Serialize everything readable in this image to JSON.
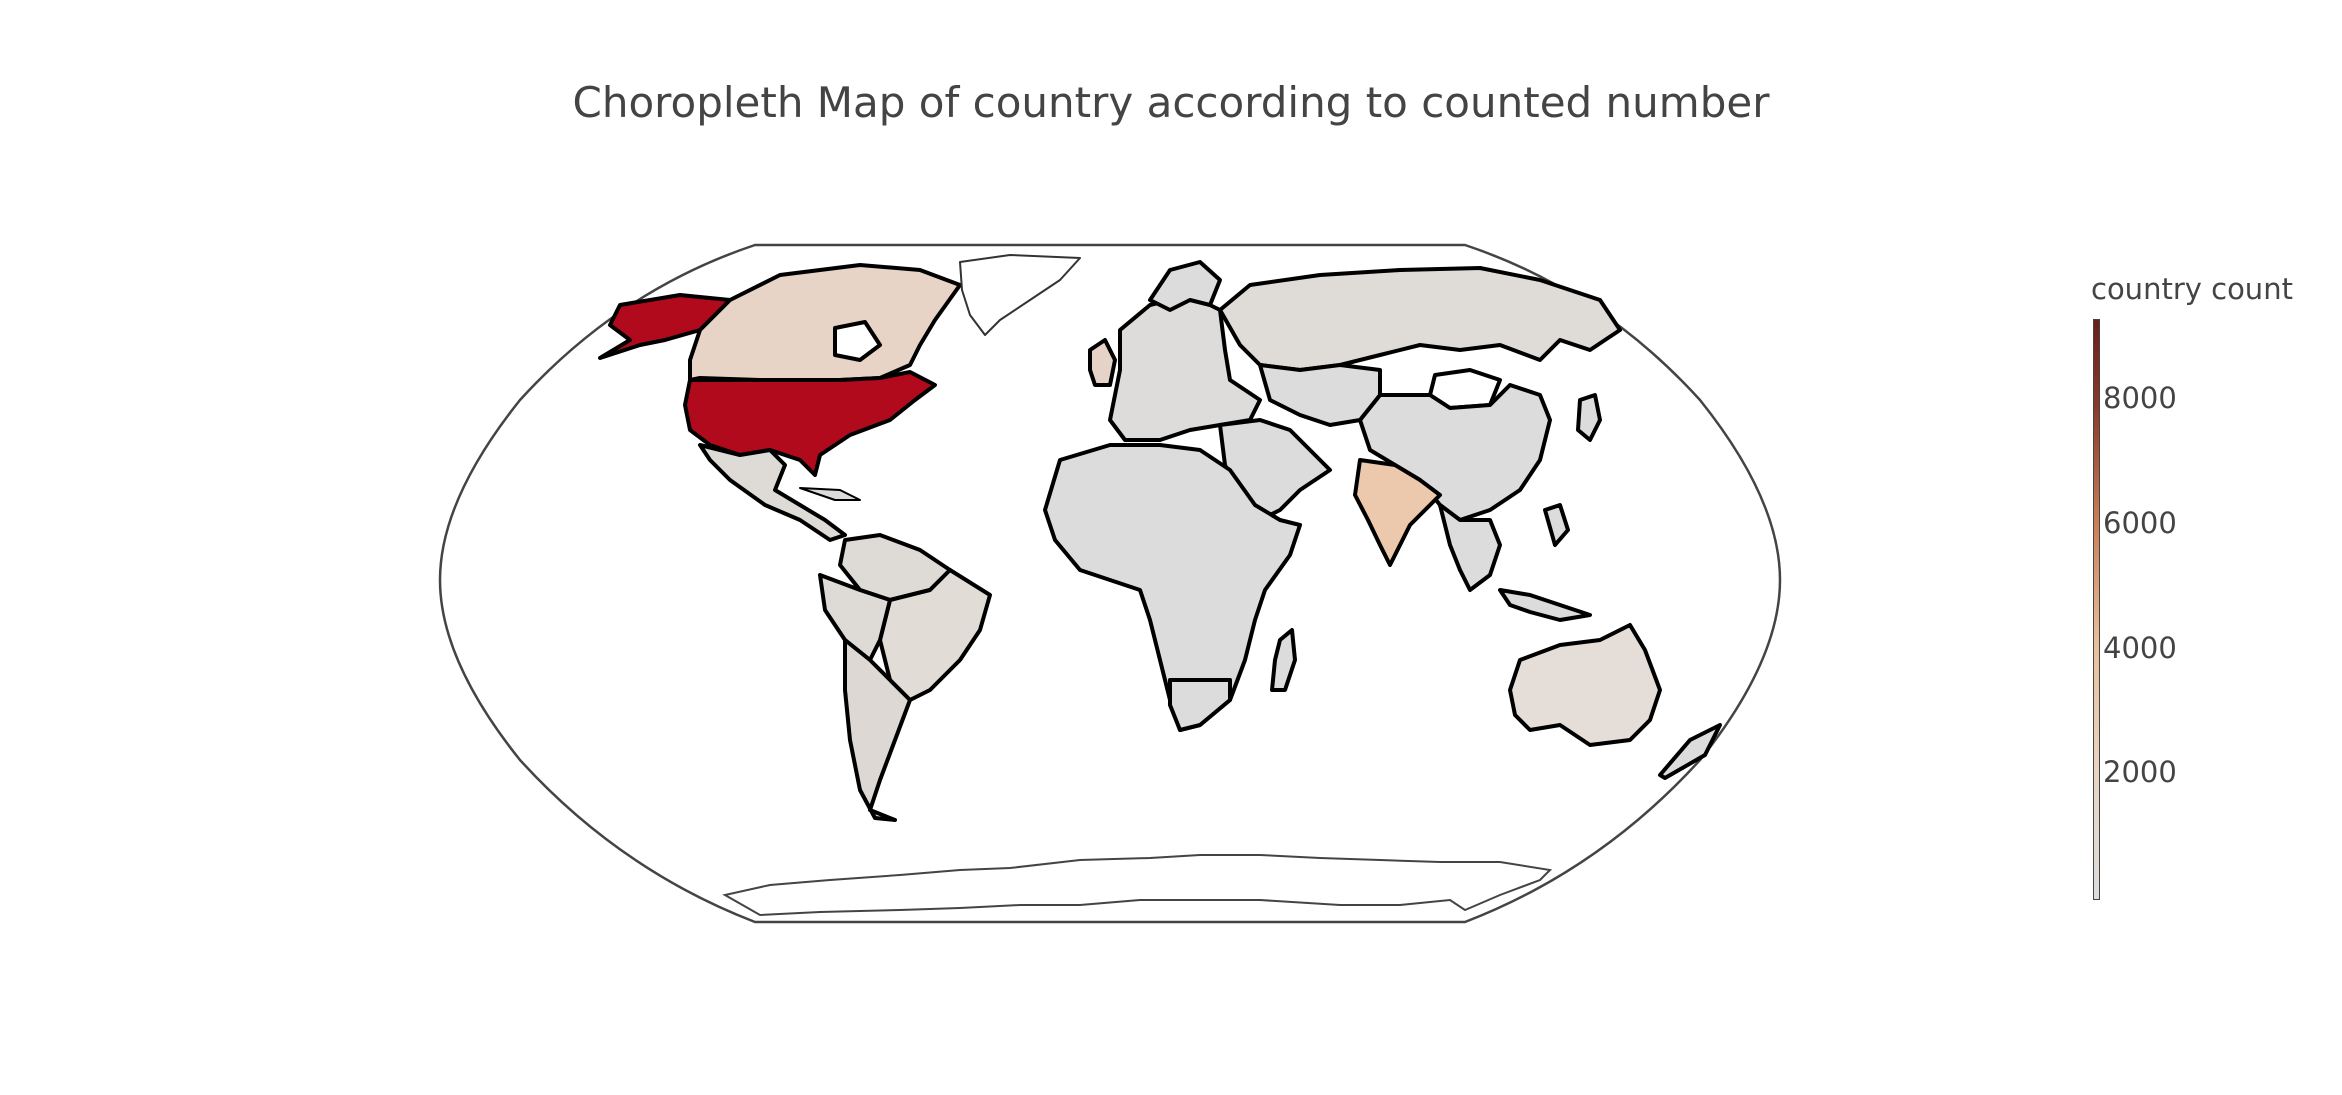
{
  "chart_data": {
    "type": "choropleth",
    "title": "Choropleth Map of country according to counted number",
    "projection": "robinson",
    "colorbar": {
      "title": "country count",
      "ticks": [
        "2000",
        "4000",
        "6000",
        "8000"
      ],
      "range": [
        0,
        9300
      ],
      "colors": [
        "#dcdcdc",
        "#e8d4c2",
        "#e9bf9b",
        "#c77b55",
        "#8a3a2a",
        "#6a1f1b"
      ]
    },
    "regions": [
      {
        "name": "United States",
        "value": 9000,
        "color": "#b10a1c"
      },
      {
        "name": "Canada",
        "value": 2600,
        "color": "#e8d4c6"
      },
      {
        "name": "India",
        "value": 3800,
        "color": "#ecc9ac"
      },
      {
        "name": "United Kingdom",
        "value": 2100,
        "color": "#e6d3c7"
      },
      {
        "name": "Brazil",
        "value": 900,
        "color": "#e2dcd7"
      },
      {
        "name": "Australia",
        "value": 900,
        "color": "#e4ddd8"
      },
      {
        "name": "Russia",
        "value": 600,
        "color": "#dfdbd6"
      },
      {
        "name": "China",
        "value": 300,
        "color": "#dcdcdc"
      },
      {
        "name": "Mexico",
        "value": 300,
        "color": "#dedad6"
      },
      {
        "name": "Argentina",
        "value": 200,
        "color": "#ddd8d4"
      },
      {
        "name": "South Africa",
        "value": 200,
        "color": "#dcdcdc"
      }
    ]
  }
}
